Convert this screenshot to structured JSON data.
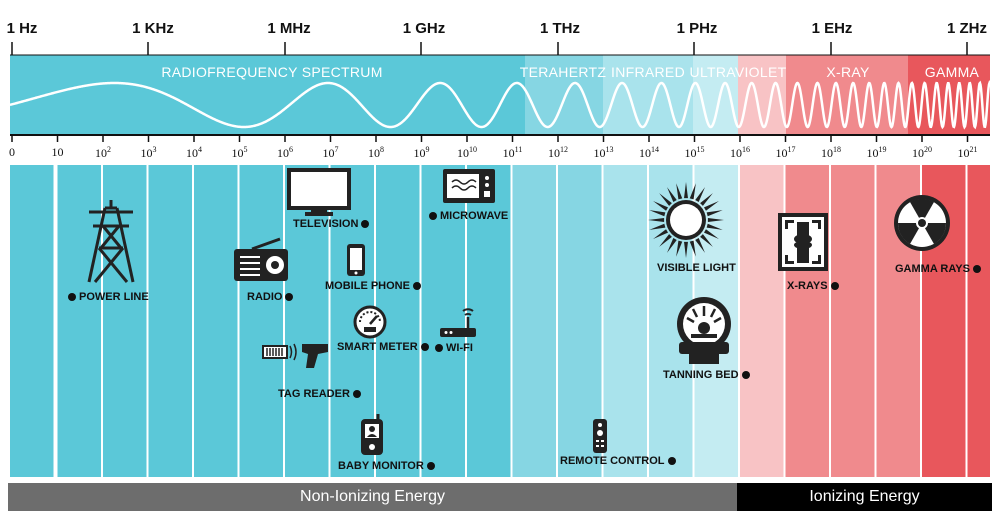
{
  "frequency_labels": [
    "1 Hz",
    "1 KHz",
    "1 MHz",
    "1 GHz",
    "1 THz",
    "1 PHz",
    "1 EHz",
    "1 ZHz"
  ],
  "bands": [
    {
      "label": "RADIOFREQUENCY SPECTRUM",
      "color": "#5bc8d8"
    },
    {
      "label": "TERAHERTZ",
      "color": "#86d6e3"
    },
    {
      "label": "INFRARED",
      "color": "#a9e3ec"
    },
    {
      "label": "ULTRAVIOLET",
      "color": "#c4ecf2"
    },
    {
      "label": "X-RAY",
      "color": "#f08a8d"
    },
    {
      "label": "GAMMA",
      "color": "#e8575c"
    }
  ],
  "ticks": [
    {
      "base": "0",
      "exp": ""
    },
    {
      "base": "10",
      "exp": ""
    },
    {
      "base": "10",
      "exp": "2"
    },
    {
      "base": "10",
      "exp": "3"
    },
    {
      "base": "10",
      "exp": "4"
    },
    {
      "base": "10",
      "exp": "5"
    },
    {
      "base": "10",
      "exp": "6"
    },
    {
      "base": "10",
      "exp": "7"
    },
    {
      "base": "10",
      "exp": "8"
    },
    {
      "base": "10",
      "exp": "9"
    },
    {
      "base": "10",
      "exp": "10"
    },
    {
      "base": "10",
      "exp": "11"
    },
    {
      "base": "10",
      "exp": "12"
    },
    {
      "base": "10",
      "exp": "13"
    },
    {
      "base": "10",
      "exp": "14"
    },
    {
      "base": "10",
      "exp": "15"
    },
    {
      "base": "10",
      "exp": "16"
    },
    {
      "base": "10",
      "exp": "17"
    },
    {
      "base": "10",
      "exp": "18"
    },
    {
      "base": "10",
      "exp": "19"
    },
    {
      "base": "10",
      "exp": "20"
    },
    {
      "base": "10",
      "exp": "21"
    }
  ],
  "items": {
    "power_line": "POWER LINE",
    "television": "TELEVISION",
    "radio": "RADIO",
    "mobile_phone": "MOBILE PHONE",
    "smart_meter": "SMART METER",
    "tag_reader": "TAG READER",
    "baby_monitor": "BABY MONITOR",
    "microwave": "MICROWAVE",
    "wifi": "WI-FI",
    "remote_control": "REMOTE CONTROL",
    "visible_light": "VISIBLE LIGHT",
    "tanning_bed": "TANNING BED",
    "x_rays": "X-RAYS",
    "gamma_rays": "GAMMA RAYS"
  },
  "footer": {
    "non_ionizing": "Non-Ionizing Energy",
    "ionizing": "Ionizing Energy",
    "non_ionizing_color": "#6d6d6d",
    "ionizing_color": "#000000"
  }
}
